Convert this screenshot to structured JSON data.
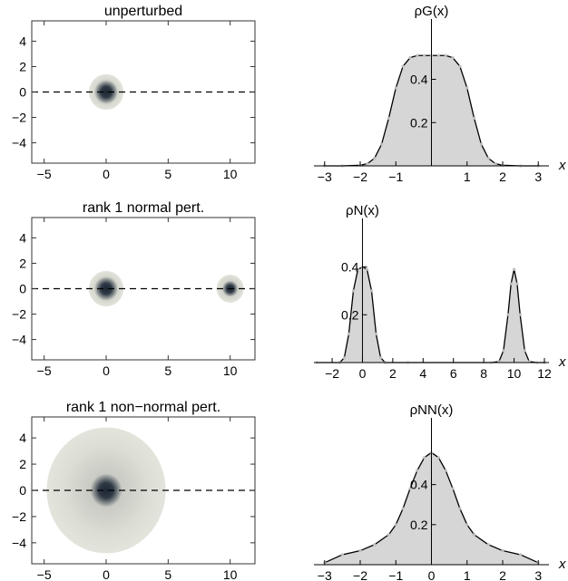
{
  "chart_data": [
    {
      "type": "heatmap",
      "title": "unperturbed",
      "xlim": [
        -6,
        12
      ],
      "ylim": [
        -5.6,
        5.6
      ],
      "xticks": [
        -5,
        0,
        5,
        10
      ],
      "yticks": [
        -4,
        -2,
        0,
        2,
        4
      ],
      "reference_line": {
        "y": 0,
        "style": "dashed"
      },
      "blobs": [
        {
          "cx": 0,
          "cy": 0,
          "halo_radius": 1.4,
          "core_radius": 0.6
        }
      ]
    },
    {
      "type": "area",
      "title": "ρG(x)",
      "xlabel": "x",
      "xlim": [
        -3.3,
        3.3
      ],
      "ylim": [
        0,
        0.62
      ],
      "xticks": [
        -3,
        -2,
        -1,
        1,
        2,
        3
      ],
      "yticks": [
        0.2,
        0.4
      ],
      "x": [
        -3,
        -2.5,
        -2,
        -1.8,
        -1.6,
        -1.4,
        -1.2,
        -1,
        -0.8,
        -0.6,
        -0.4,
        -0.2,
        0,
        0.2,
        0.4,
        0.6,
        0.8,
        1,
        1.2,
        1.4,
        1.6,
        1.8,
        2,
        2.5,
        3
      ],
      "y": [
        0,
        0,
        0.003,
        0.01,
        0.035,
        0.1,
        0.22,
        0.36,
        0.46,
        0.5,
        0.51,
        0.51,
        0.51,
        0.51,
        0.51,
        0.5,
        0.46,
        0.36,
        0.22,
        0.1,
        0.035,
        0.01,
        0.003,
        0,
        0
      ]
    },
    {
      "type": "heatmap",
      "title": "rank 1 normal pert.",
      "xlim": [
        -6,
        12
      ],
      "ylim": [
        -5.6,
        5.6
      ],
      "xticks": [
        -5,
        0,
        5,
        10
      ],
      "yticks": [
        -4,
        -2,
        0,
        2,
        4
      ],
      "reference_line": {
        "y": 0,
        "style": "dashed"
      },
      "blobs": [
        {
          "cx": 0,
          "cy": 0,
          "halo_radius": 1.4,
          "core_radius": 0.6
        },
        {
          "cx": 10,
          "cy": 0,
          "halo_radius": 1.1,
          "core_radius": 0.4
        }
      ]
    },
    {
      "type": "area",
      "title": "ρN(x)",
      "xlabel": "x",
      "xlim": [
        -3.2,
        12.3
      ],
      "ylim": [
        0,
        0.55
      ],
      "xticks": [
        -2,
        0,
        2,
        4,
        6,
        8,
        10,
        12
      ],
      "yticks": [
        0.2,
        0.4
      ],
      "x": [
        -3,
        -1.5,
        -1.2,
        -0.9,
        -0.6,
        -0.3,
        0,
        0.3,
        0.6,
        0.9,
        1.2,
        1.5,
        3,
        8.5,
        9,
        9.3,
        9.6,
        9.8,
        10,
        10.2,
        10.4,
        10.7,
        11,
        11.5,
        12
      ],
      "y": [
        0,
        0,
        0.02,
        0.12,
        0.3,
        0.39,
        0.4,
        0.39,
        0.3,
        0.12,
        0.02,
        0,
        0,
        0,
        0.004,
        0.05,
        0.2,
        0.33,
        0.39,
        0.33,
        0.2,
        0.05,
        0.004,
        0,
        0
      ]
    },
    {
      "type": "heatmap",
      "title": "rank 1 non−normal pert.",
      "xlim": [
        -6,
        12
      ],
      "ylim": [
        -5.6,
        5.6
      ],
      "xticks": [
        -5,
        0,
        5,
        10
      ],
      "yticks": [
        -4,
        -2,
        0,
        2,
        4
      ],
      "reference_line": {
        "y": 0,
        "style": "dashed"
      },
      "blobs": [
        {
          "cx": 0,
          "cy": 0,
          "halo_radius": 4.8,
          "core_radius": 0.8
        }
      ]
    },
    {
      "type": "area",
      "title": "ρNN(x)",
      "xlabel": "x",
      "xlim": [
        -3.3,
        3.3
      ],
      "ylim": [
        0,
        0.67
      ],
      "xticks": [
        -3,
        -2,
        -1,
        0,
        1,
        2,
        3
      ],
      "yticks": [
        0.2,
        0.4
      ],
      "x": [
        -3,
        -2.5,
        -2,
        -1.6,
        -1.2,
        -1,
        -0.8,
        -0.6,
        -0.4,
        -0.2,
        0,
        0.2,
        0.4,
        0.6,
        0.8,
        1,
        1.2,
        1.6,
        2,
        2.5,
        3
      ],
      "y": [
        0.01,
        0.05,
        0.07,
        0.1,
        0.15,
        0.2,
        0.28,
        0.38,
        0.47,
        0.535,
        0.56,
        0.535,
        0.47,
        0.38,
        0.28,
        0.2,
        0.15,
        0.1,
        0.07,
        0.05,
        0.01
      ]
    }
  ]
}
